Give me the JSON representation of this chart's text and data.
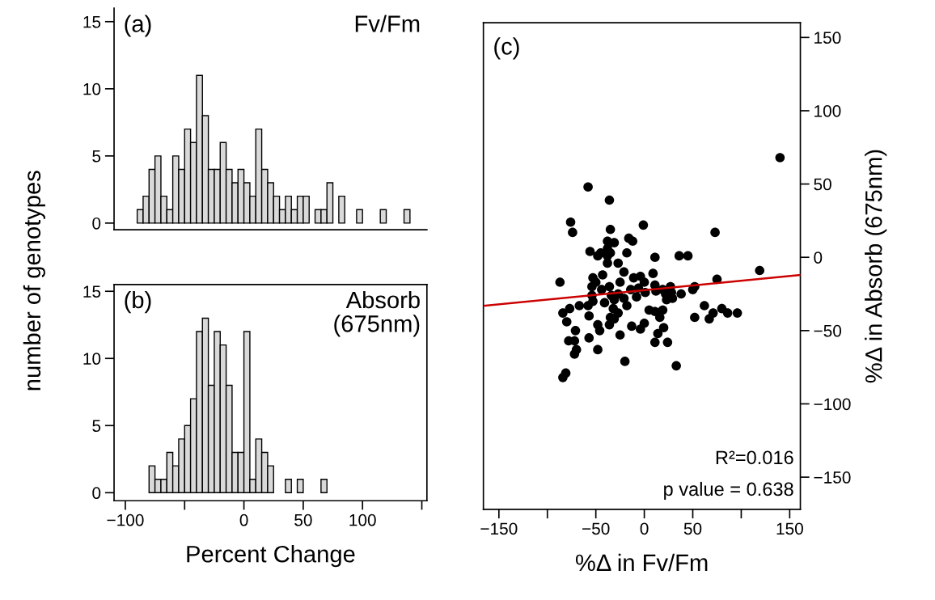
{
  "chart_data": [
    {
      "type": "histogram",
      "ylabel": "number of genotypes",
      "annotations": [
        "(a)",
        "Fv/Fm"
      ],
      "color": "#d9d9d9",
      "bins": [
        -90,
        -85,
        -80,
        -75,
        -70,
        -65,
        -60,
        -55,
        -50,
        -45,
        -40,
        -35,
        -30,
        -25,
        -20,
        -15,
        -10,
        -5,
        0,
        5,
        10,
        15,
        20,
        25,
        30,
        35,
        40,
        45,
        50,
        55,
        60,
        65,
        70,
        75,
        80,
        85,
        90,
        95,
        100,
        105,
        110,
        115,
        120,
        125,
        130,
        135,
        140
      ],
      "values": [
        1,
        2,
        4,
        5,
        2,
        1,
        5,
        4,
        7,
        6,
        11,
        8,
        4,
        4,
        6,
        4,
        3,
        4,
        3,
        2,
        7,
        4,
        3,
        2,
        1,
        2,
        1,
        2,
        2,
        0,
        1,
        1,
        3,
        0,
        2,
        0,
        0,
        1,
        0,
        0,
        0,
        1,
        0,
        0,
        0,
        1
      ],
      "xlim": [
        -109.5,
        154.3
      ],
      "ylim": [
        -0.5,
        16
      ],
      "yticks": [
        0,
        5,
        10,
        15
      ],
      "tick_labels": "y",
      "grid": false,
      "legend": false
    },
    {
      "type": "histogram",
      "xlabel": "Percent Change",
      "annotations": [
        "(b)",
        "Absorb\n(675nm)"
      ],
      "color": "#d9d9d9",
      "bins": [
        -80,
        -75,
        -70,
        -65,
        -60,
        -55,
        -50,
        -45,
        -40,
        -35,
        -30,
        -25,
        -20,
        -15,
        -10,
        -5,
        0,
        5,
        10,
        15,
        20,
        25,
        30,
        35,
        40,
        45,
        50,
        55,
        60,
        65,
        70
      ],
      "values": [
        2,
        1,
        1,
        3,
        2,
        4,
        5,
        7,
        12,
        13,
        8,
        12,
        11,
        8,
        3,
        3,
        12,
        1,
        4,
        3,
        2,
        0,
        0,
        1,
        0,
        1,
        0,
        0,
        0,
        1
      ],
      "xlim": [
        -109.5,
        154.3
      ],
      "xticks": [
        -100,
        {
          "value": -50,
          "label": null
        },
        0,
        50,
        100,
        {
          "value": 150,
          "label": null
        }
      ],
      "ylim": [
        -0.6,
        15.5
      ],
      "yticks": [
        0,
        5,
        10,
        15
      ],
      "grid": false,
      "legend": false
    },
    {
      "type": "scatter",
      "xlabel": "%Δ in Fv/Fm",
      "ylabel": "%Δ in Absorb (675nm)",
      "annotations": [
        "(c)",
        "R²=0.016",
        "p value = 0.638"
      ],
      "xlim": [
        -166,
        161
      ],
      "xticks": [
        -150,
        {
          "value": -100,
          "label": null
        },
        -50,
        0,
        50,
        {
          "value": 100,
          "label": null
        },
        150
      ],
      "ylim": [
        -172,
        160
      ],
      "yticks": [
        -150,
        -100,
        -50,
        0,
        50,
        100,
        150
      ],
      "grid": false,
      "legend": false,
      "marker": "circle",
      "series": [
        {
          "type": "scatter",
          "color": "#000000",
          "x": [
            -58,
            -36,
            -76,
            -74,
            -35,
            -1,
            73,
            140,
            -38,
            -31,
            -16,
            -12,
            -56,
            -48,
            -45,
            -38,
            -38,
            -38,
            -35,
            -18,
            -27,
            11,
            36,
            45,
            -87,
            -21,
            9,
            119,
            75,
            -53,
            -43,
            -50,
            -54,
            -36,
            -44,
            -25,
            -11,
            -4,
            0,
            -14,
            -6,
            1,
            -8,
            11,
            12,
            19,
            27,
            22,
            28,
            38,
            50,
            52,
            -54,
            -53,
            -58,
            -34,
            -27,
            -41,
            -31,
            -21,
            -18,
            -67,
            -77,
            -84,
            23,
            29,
            5,
            11,
            19,
            16,
            -32,
            -27,
            -35,
            -31,
            -36,
            62,
            80,
            86,
            96,
            71,
            67,
            52,
            -57,
            -80,
            -48,
            -46,
            -13,
            -4,
            0,
            20,
            14,
            11,
            24,
            -71,
            -78,
            -72,
            -57,
            -25,
            -70,
            -72,
            -48,
            -20,
            33,
            -81,
            -84
          ],
          "values": [
            48,
            39,
            24,
            17,
            19,
            22,
            17,
            68,
            11,
            10,
            13,
            11,
            4,
            1,
            3,
            6,
            1,
            -4,
            3,
            3,
            -4,
            0,
            1,
            1,
            -17,
            -10,
            -11,
            -9,
            -15,
            -14,
            -12,
            -17,
            -20,
            -20,
            -22,
            -17,
            -14,
            -13,
            -17,
            -22,
            -21,
            -24,
            -27,
            -19,
            -23,
            -22,
            -20,
            -25,
            -24,
            -25,
            -22,
            -20,
            -26,
            -30,
            -33,
            -26,
            -25,
            -31,
            -29,
            -28,
            -33,
            -33,
            -35,
            -38,
            -29,
            -28,
            -36,
            -37,
            -36,
            -41,
            -35,
            -38,
            -41,
            -42,
            -46,
            -33,
            -35,
            -38,
            -38,
            -38,
            -42,
            -41,
            -40,
            -44,
            -46,
            -50,
            -47,
            -49,
            -45,
            -48,
            -52,
            -58,
            -58,
            -50,
            -57,
            -57,
            -55,
            -53,
            -63,
            -66,
            -63,
            -71,
            -74,
            -79,
            -82
          ]
        },
        {
          "type": "line",
          "color": "#cc0000",
          "marker": "none",
          "x": [
            -166,
            161
          ],
          "values": [
            -33.1,
            -12.0
          ]
        }
      ]
    }
  ]
}
